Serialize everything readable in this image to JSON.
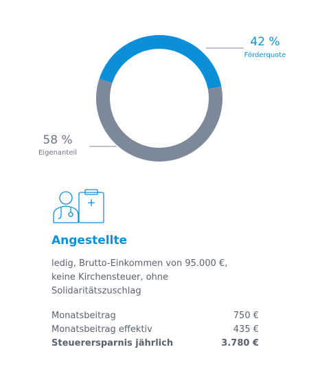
{
  "chart_data": {
    "type": "donut",
    "categories": [
      "Förderquote",
      "Eigenanteil"
    ],
    "values": [
      42,
      58
    ],
    "value_labels": [
      "42 %",
      "58 %"
    ],
    "colors": [
      "#0a8fd8",
      "#7d899b"
    ]
  },
  "card": {
    "title": "Angestellte",
    "description": [
      "ledig, Brutto-Einkommen von 95.000 €,",
      "keine Kirchensteuer, ohne Solidaritätszuschlag"
    ],
    "rows": [
      [
        "Monatsbeitrag",
        "750 €"
      ],
      [
        "Monatsbeitrag effektiv",
        "435 €"
      ],
      [
        "Steuerersparnis jährlich",
        "3.780 €"
      ]
    ]
  }
}
